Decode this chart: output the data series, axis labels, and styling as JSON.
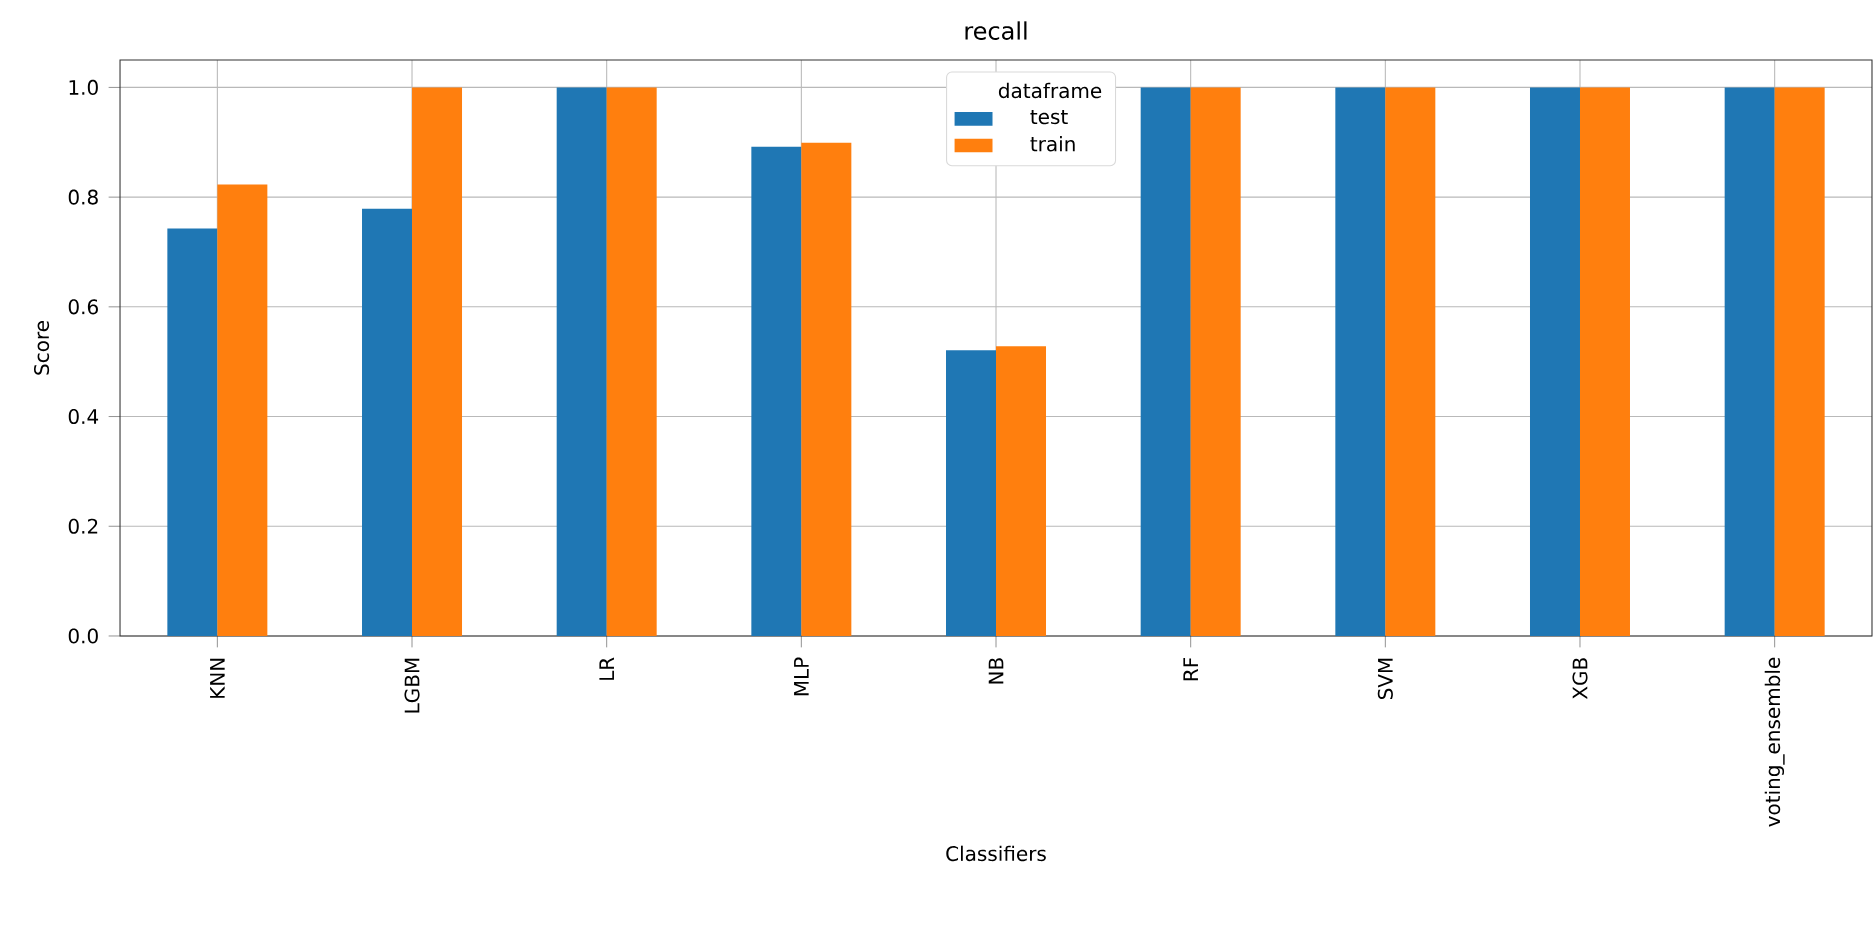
{
  "chart_data": {
    "type": "bar",
    "title": "recall",
    "xlabel": "Classifiers",
    "ylabel": "Score",
    "legend_title": "dataframe",
    "categories": [
      "KNN",
      "LGBM",
      "LR",
      "MLP",
      "NB",
      "RF",
      "SVM",
      "XGB",
      "voting_ensemble"
    ],
    "series": [
      {
        "name": "test",
        "color": "#1f77b4",
        "values": [
          0.743,
          0.779,
          1.0,
          0.892,
          0.521,
          1.0,
          1.0,
          1.0,
          1.0
        ]
      },
      {
        "name": "train",
        "color": "#ff7f0e",
        "values": [
          0.823,
          1.0,
          1.0,
          0.899,
          0.528,
          1.0,
          1.0,
          1.0,
          1.0
        ]
      }
    ],
    "ylim": [
      0,
      1.05
    ],
    "yticks": [
      {
        "value": 0,
        "label": "0.0"
      },
      0.2,
      0.4,
      0.6,
      0.8,
      {
        "value": 1,
        "label": "1.0"
      }
    ],
    "grid": true,
    "legend": "top"
  }
}
